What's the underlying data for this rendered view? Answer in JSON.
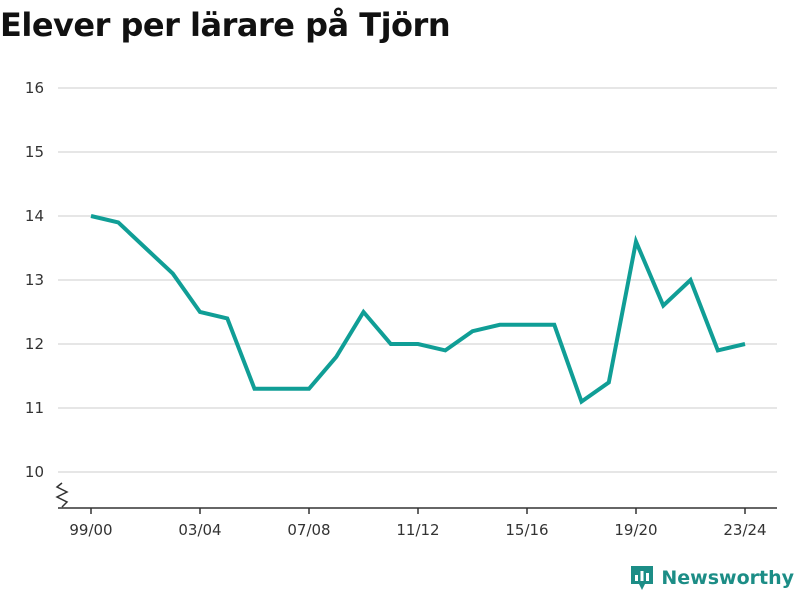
{
  "title": "Elever per lärare på Tjörn",
  "brand": {
    "name": "Newsworthy",
    "icon": "bar-chart-logo-icon"
  },
  "colors": {
    "line": "#109e96",
    "grid": "#dddddd",
    "axis": "#333333",
    "brand": "#1c8d86"
  },
  "chart_data": {
    "type": "line",
    "title": "Elever per lärare på Tjörn",
    "xlabel": "",
    "ylabel": "",
    "x": [
      "99/00",
      "00/01",
      "01/02",
      "02/03",
      "03/04",
      "04/05",
      "05/06",
      "06/07",
      "07/08",
      "08/09",
      "09/10",
      "10/11",
      "11/12",
      "12/13",
      "13/14",
      "14/15",
      "15/16",
      "16/17",
      "17/18",
      "18/19",
      "19/20",
      "20/21",
      "21/22",
      "22/23",
      "23/24"
    ],
    "xticks": [
      "99/00",
      "03/04",
      "07/08",
      "11/12",
      "15/16",
      "19/20",
      "23/24"
    ],
    "yticks": [
      10,
      11,
      12,
      13,
      14,
      15,
      16
    ],
    "ylim": [
      10,
      16
    ],
    "grid": true,
    "axis_break": true,
    "series": [
      {
        "values": [
          14.0,
          13.9,
          13.5,
          13.1,
          12.5,
          12.4,
          11.3,
          11.3,
          11.3,
          11.8,
          12.5,
          12.0,
          12.0,
          11.9,
          12.2,
          12.3,
          12.3,
          12.3,
          11.1,
          11.4,
          13.6,
          12.6,
          13.0,
          11.9,
          12.0
        ]
      }
    ]
  }
}
